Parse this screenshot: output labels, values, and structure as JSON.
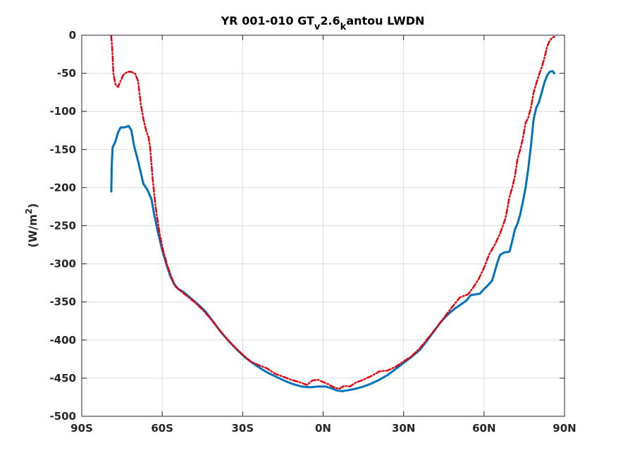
{
  "chart_data": {
    "type": "line",
    "title": {
      "prefix": "YR 001-010 GT",
      "sub1": "v",
      "mid": "2.6",
      "sub2": "k",
      "suffix": "antou LWDN"
    },
    "ylabel": {
      "text": "(W/m",
      "sup": "2",
      "close": ")"
    },
    "xlim": [
      -90,
      90
    ],
    "ylim": [
      -500,
      0
    ],
    "xticks": [
      -90,
      -60,
      -30,
      0,
      30,
      60,
      90
    ],
    "xticklabels": [
      "90S",
      "60S",
      "30S",
      "0N",
      "30N",
      "60N",
      "90N"
    ],
    "yticks": [
      0,
      -50,
      -100,
      -150,
      -200,
      -250,
      -300,
      -350,
      -400,
      -450,
      -500
    ],
    "yticklabels": [
      "0",
      "-50",
      "-100",
      "-150",
      "-200",
      "-250",
      "-300",
      "-350",
      "-400",
      "-450",
      "-500"
    ],
    "grid": true,
    "series": [
      {
        "color": "#0072bd",
        "style": "solid",
        "points": [
          [
            -79,
            -205
          ],
          [
            -78.8,
            -170
          ],
          [
            -78.5,
            -147
          ],
          [
            -77.5,
            -140
          ],
          [
            -76.5,
            -128
          ],
          [
            -75.5,
            -121
          ],
          [
            -74,
            -121
          ],
          [
            -72.5,
            -119
          ],
          [
            -71.5,
            -125
          ],
          [
            -70.5,
            -145
          ],
          [
            -69,
            -165
          ],
          [
            -68,
            -180
          ],
          [
            -67,
            -195
          ],
          [
            -65.5,
            -203
          ],
          [
            -64,
            -215
          ],
          [
            -63,
            -235
          ],
          [
            -61.5,
            -260
          ],
          [
            -60,
            -282
          ],
          [
            -58.5,
            -300
          ],
          [
            -57,
            -316
          ],
          [
            -55.5,
            -327
          ],
          [
            -54,
            -333
          ],
          [
            -52,
            -337
          ],
          [
            -50,
            -343
          ],
          [
            -47,
            -352
          ],
          [
            -44,
            -362
          ],
          [
            -41,
            -376
          ],
          [
            -38,
            -390
          ],
          [
            -35,
            -402
          ],
          [
            -32,
            -413
          ],
          [
            -29,
            -423
          ],
          [
            -26,
            -431
          ],
          [
            -23,
            -438
          ],
          [
            -20,
            -444
          ],
          [
            -17,
            -449
          ],
          [
            -14,
            -454
          ],
          [
            -11,
            -458
          ],
          [
            -8,
            -461
          ],
          [
            -5,
            -462
          ],
          [
            -2,
            -461
          ],
          [
            1,
            -461
          ],
          [
            3,
            -463
          ],
          [
            5,
            -466
          ],
          [
            7,
            -467
          ],
          [
            9,
            -466
          ],
          [
            12,
            -464
          ],
          [
            15,
            -461
          ],
          [
            18,
            -457
          ],
          [
            21,
            -452
          ],
          [
            24,
            -446
          ],
          [
            27,
            -438
          ],
          [
            30,
            -430
          ],
          [
            33,
            -422
          ],
          [
            36,
            -413
          ],
          [
            38.5,
            -402
          ],
          [
            41,
            -390
          ],
          [
            43.5,
            -378
          ],
          [
            46,
            -368
          ],
          [
            49,
            -359
          ],
          [
            51.5,
            -353
          ],
          [
            53.5,
            -348
          ],
          [
            55,
            -341
          ],
          [
            57,
            -340
          ],
          [
            58.5,
            -339
          ],
          [
            60,
            -333
          ],
          [
            61.5,
            -328
          ],
          [
            63,
            -322
          ],
          [
            64,
            -310
          ],
          [
            65,
            -298
          ],
          [
            66,
            -288
          ],
          [
            67.5,
            -285
          ],
          [
            69.5,
            -284
          ],
          [
            70.5,
            -270
          ],
          [
            71.5,
            -255
          ],
          [
            72.5,
            -247
          ],
          [
            73.5,
            -235
          ],
          [
            74.5,
            -218
          ],
          [
            75.5,
            -200
          ],
          [
            76.5,
            -175
          ],
          [
            77.5,
            -145
          ],
          [
            78.5,
            -110
          ],
          [
            79.5,
            -95
          ],
          [
            80.5,
            -88
          ],
          [
            81.5,
            -75
          ],
          [
            82.5,
            -62
          ],
          [
            83.5,
            -53
          ],
          [
            84.5,
            -48
          ],
          [
            85.5,
            -47
          ],
          [
            86.2,
            -50
          ]
        ]
      },
      {
        "color": "#e8000b",
        "style": "dashdot",
        "points": [
          [
            -79,
            -1
          ],
          [
            -78.6,
            -20
          ],
          [
            -78.2,
            -50
          ],
          [
            -77.5,
            -64
          ],
          [
            -76.5,
            -68
          ],
          [
            -75.5,
            -60
          ],
          [
            -74.5,
            -52
          ],
          [
            -73,
            -48
          ],
          [
            -71.5,
            -48
          ],
          [
            -70,
            -51
          ],
          [
            -69,
            -60
          ],
          [
            -68,
            -90
          ],
          [
            -67,
            -110
          ],
          [
            -66,
            -125
          ],
          [
            -65,
            -135
          ],
          [
            -64.5,
            -148
          ],
          [
            -63.5,
            -190
          ],
          [
            -62.5,
            -225
          ],
          [
            -61,
            -260
          ],
          [
            -59.5,
            -285
          ],
          [
            -58,
            -303
          ],
          [
            -56.5,
            -318
          ],
          [
            -55,
            -330
          ],
          [
            -53,
            -336
          ],
          [
            -50.5,
            -343
          ],
          [
            -48,
            -350
          ],
          [
            -45,
            -360
          ],
          [
            -42,
            -372
          ],
          [
            -39,
            -385
          ],
          [
            -36,
            -398
          ],
          [
            -33,
            -409
          ],
          [
            -30,
            -419
          ],
          [
            -27,
            -428
          ],
          [
            -24,
            -433
          ],
          [
            -21,
            -437
          ],
          [
            -18,
            -444
          ],
          [
            -15,
            -448
          ],
          [
            -12,
            -452
          ],
          [
            -9,
            -455
          ],
          [
            -6,
            -459
          ],
          [
            -4,
            -453
          ],
          [
            -2,
            -452
          ],
          [
            0,
            -455
          ],
          [
            2,
            -458
          ],
          [
            4,
            -462
          ],
          [
            6,
            -464
          ],
          [
            8,
            -460
          ],
          [
            10,
            -461
          ],
          [
            12,
            -456
          ],
          [
            15,
            -452
          ],
          [
            18,
            -447
          ],
          [
            21,
            -441
          ],
          [
            24,
            -440
          ],
          [
            27,
            -435
          ],
          [
            30,
            -428
          ],
          [
            33,
            -421
          ],
          [
            36,
            -411
          ],
          [
            39,
            -398
          ],
          [
            42,
            -385
          ],
          [
            45,
            -371
          ],
          [
            48,
            -357
          ],
          [
            51,
            -344
          ],
          [
            54,
            -340
          ],
          [
            56,
            -331
          ],
          [
            58,
            -320
          ],
          [
            60,
            -305
          ],
          [
            62,
            -287
          ],
          [
            64,
            -275
          ],
          [
            66,
            -260
          ],
          [
            68,
            -240
          ],
          [
            69.5,
            -212
          ],
          [
            70.5,
            -200
          ],
          [
            71.5,
            -185
          ],
          [
            72.5,
            -162
          ],
          [
            73.5,
            -150
          ],
          [
            74.5,
            -135
          ],
          [
            75.5,
            -115
          ],
          [
            76.5,
            -108
          ],
          [
            77.5,
            -95
          ],
          [
            78.5,
            -75
          ],
          [
            79.5,
            -63
          ],
          [
            80.5,
            -52
          ],
          [
            81.5,
            -42
          ],
          [
            82.5,
            -30
          ],
          [
            83.5,
            -15
          ],
          [
            84.5,
            -7
          ],
          [
            85.5,
            -3
          ],
          [
            86.2,
            -2
          ]
        ]
      }
    ]
  }
}
